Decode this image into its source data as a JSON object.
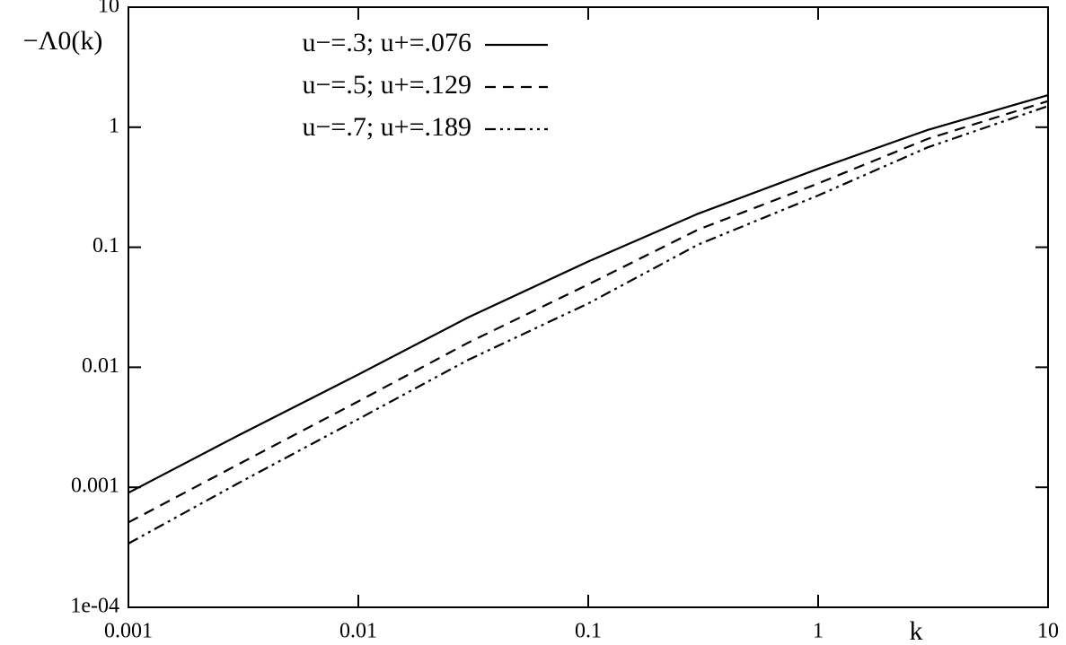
{
  "chart_data": {
    "type": "line",
    "x_label": "k",
    "y_label": "−Λ0(k)",
    "x_scale": "log",
    "y_scale": "log",
    "x": [
      0.001,
      0.003,
      0.01,
      0.03,
      0.1,
      0.3,
      1,
      3,
      10
    ],
    "series": [
      {
        "name": "u−=.3; u+=.076",
        "color": "#000000",
        "dash": "solid",
        "values": [
          0.0009,
          0.0027,
          0.0087,
          0.026,
          0.076,
          0.19,
          0.45,
          0.95,
          1.85
        ]
      },
      {
        "name": "u−=.5; u+=.129",
        "color": "#000000",
        "dash": "dashed",
        "values": [
          0.00051,
          0.00155,
          0.0052,
          0.016,
          0.049,
          0.14,
          0.34,
          0.8,
          1.65
        ]
      },
      {
        "name": "u−=.7; u+=.189",
        "color": "#000000",
        "dash": "dashdot",
        "values": [
          0.00034,
          0.00108,
          0.0037,
          0.0115,
          0.034,
          0.105,
          0.27,
          0.68,
          1.5
        ]
      }
    ],
    "xlim": [
      0.001,
      10
    ],
    "xticks": [
      0.001,
      0.01,
      0.1,
      1,
      10
    ],
    "ylim": [
      0.0001,
      10
    ],
    "yticks": [
      {
        "value": 0.0001,
        "label": "1e-04"
      },
      0.001,
      0.01,
      0.1,
      1,
      10
    ],
    "legend": "top-left"
  }
}
